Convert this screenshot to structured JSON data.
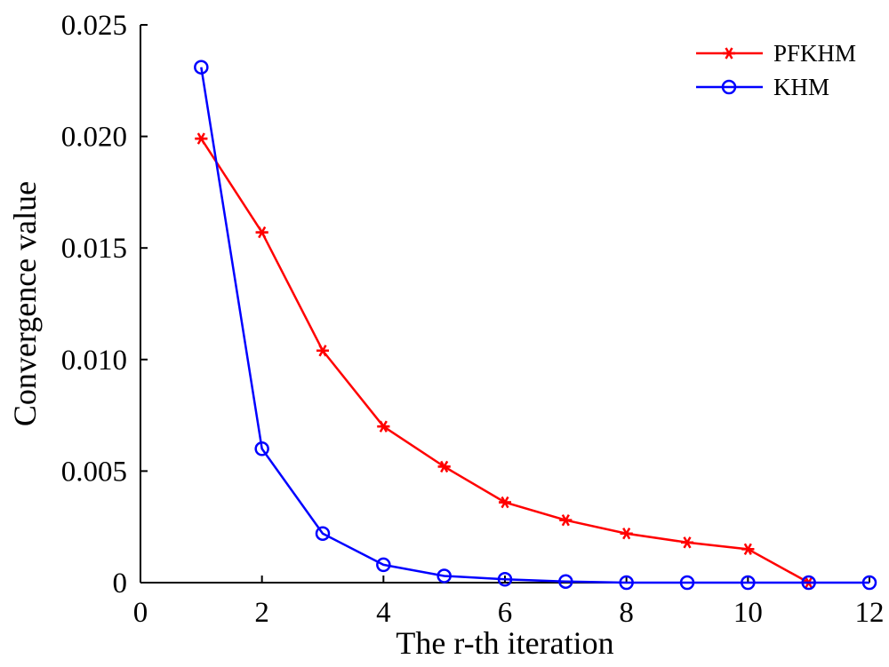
{
  "chart_data": {
    "type": "line",
    "title": "",
    "xlabel": "The r-th iteration",
    "ylabel": "Convergence value",
    "xlim": [
      0,
      12
    ],
    "ylim": [
      0,
      0.025
    ],
    "x_ticks": [
      "0",
      "2",
      "4",
      "6",
      "8",
      "10",
      "12"
    ],
    "y_ticks": [
      "0",
      "0.005",
      "0.010",
      "0.015",
      "0.020",
      "0.025"
    ],
    "grid": false,
    "legend_position": "top-right",
    "x": [
      1,
      2,
      3,
      4,
      5,
      6,
      7,
      8,
      9,
      10,
      11,
      12
    ],
    "series": [
      {
        "name": "PFKHM",
        "color": "#ff0000",
        "marker": "asterisk",
        "x": [
          1,
          2,
          3,
          4,
          5,
          6,
          7,
          8,
          9,
          10,
          11
        ],
        "values": [
          0.0199,
          0.0157,
          0.0104,
          0.007,
          0.0052,
          0.0036,
          0.0028,
          0.0022,
          0.0018,
          0.0015,
          0.0
        ]
      },
      {
        "name": "KHM",
        "color": "#0000ff",
        "marker": "circle",
        "x": [
          1,
          2,
          3,
          4,
          5,
          6,
          7,
          8,
          9,
          10,
          11,
          12
        ],
        "values": [
          0.0231,
          0.006,
          0.0022,
          0.0008,
          0.0003,
          0.00015,
          5e-05,
          0.0,
          0.0,
          0.0,
          0.0,
          0.0
        ]
      }
    ]
  }
}
